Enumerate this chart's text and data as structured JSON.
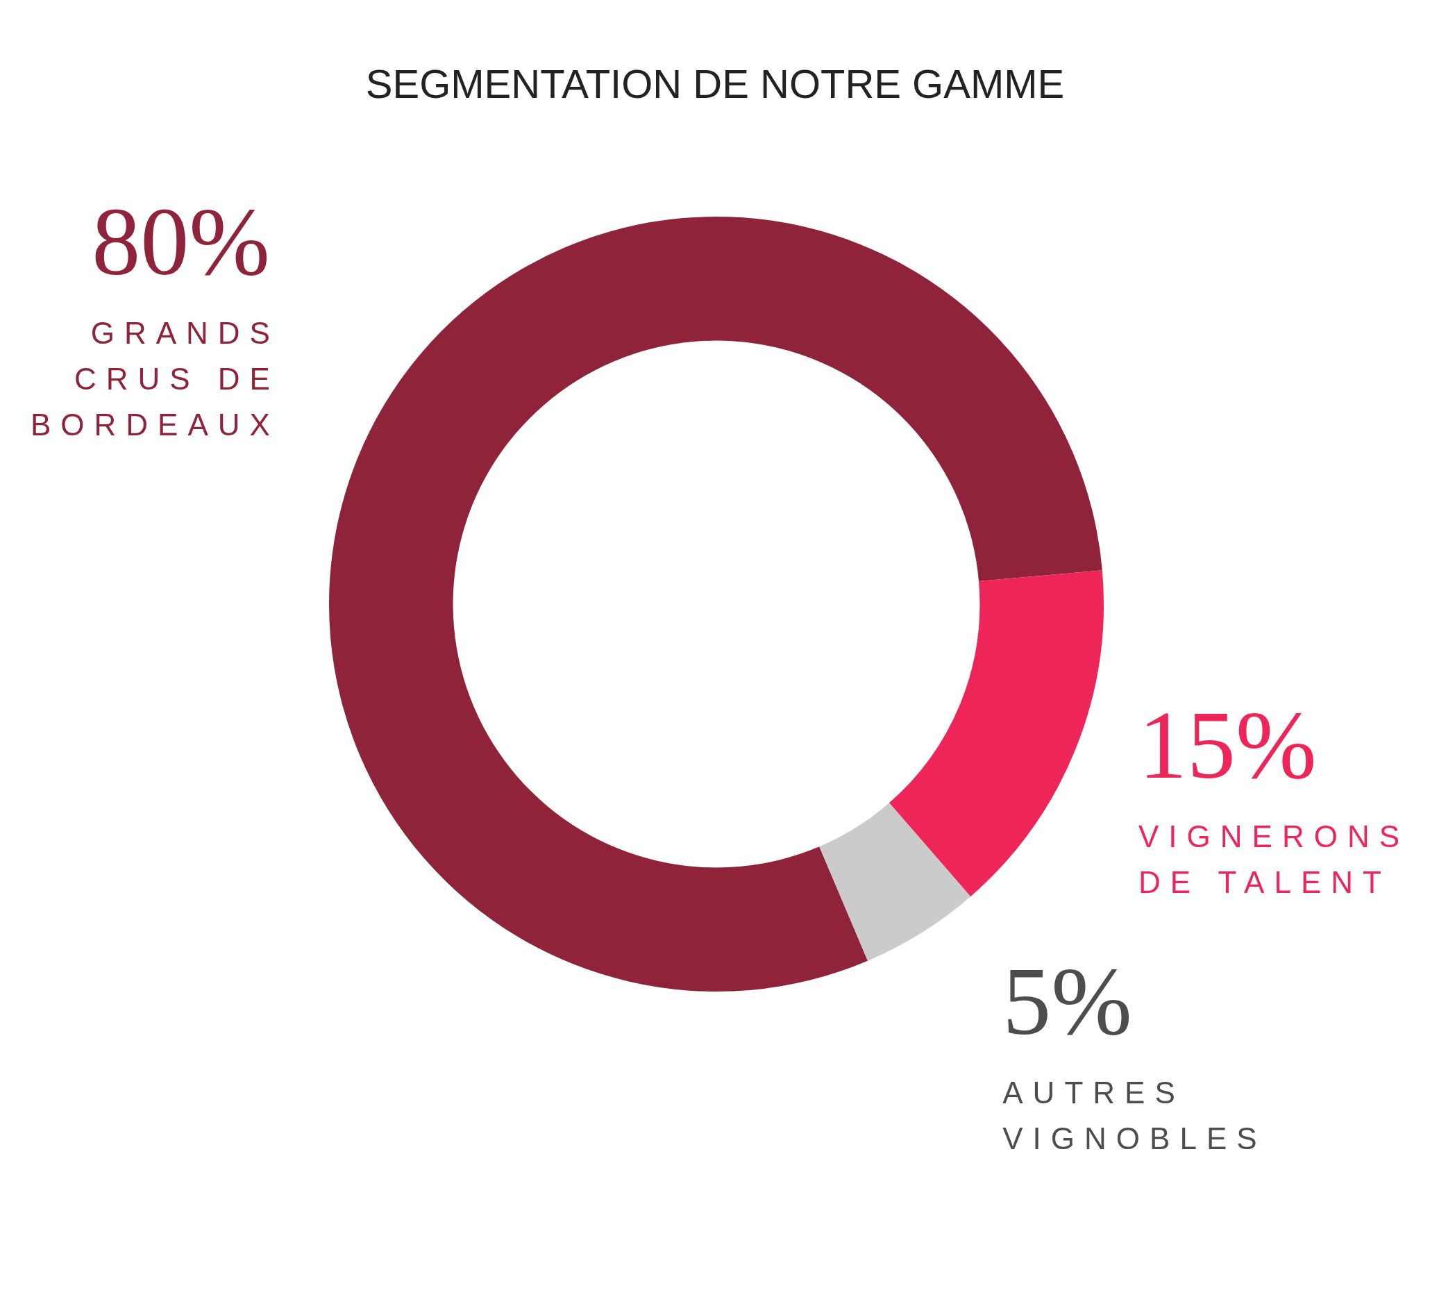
{
  "chart_data": {
    "type": "donut",
    "title": "SEGMENTATION DE NOTRE GAMME",
    "categories": [
      "GRANDS CRUS DE BORDEAUX",
      "VIGNERONS DE TALENT",
      "AUTRES VIGNOBLES"
    ],
    "values": [
      80,
      15,
      5
    ],
    "value_labels": [
      "80%",
      "15%",
      "5%"
    ],
    "colors": [
      "#8e2339",
      "#ee2558",
      "#cbcbcb"
    ],
    "legend": false
  }
}
